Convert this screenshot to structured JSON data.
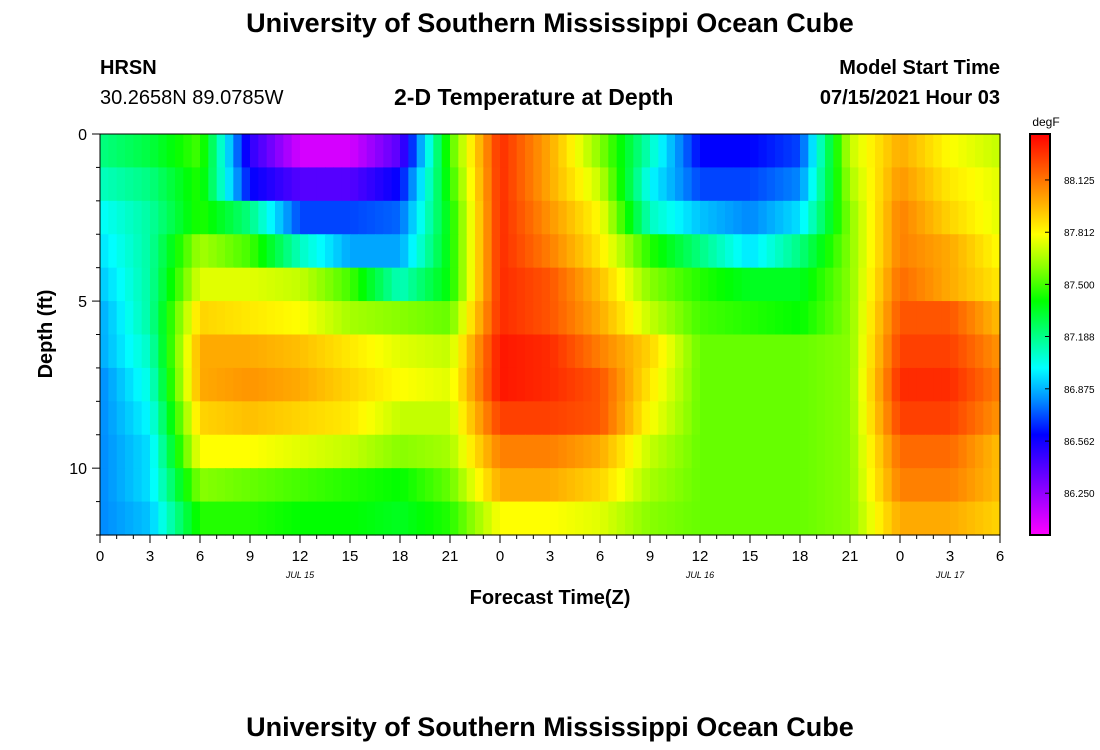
{
  "page": {
    "title_top": "University of Southern Mississippi Ocean Cube",
    "title_bottom": "University of Southern Mississippi Ocean Cube",
    "station_code": "HRSN",
    "station_coords": "30.2658N  89.0785W",
    "plot_title": "2-D Temperature at Depth",
    "model_start_label": "Model Start Time",
    "model_start_value": "07/15/2021 Hour 03"
  },
  "chart_data": {
    "type": "heatmap",
    "title": "2-D Temperature at Depth",
    "xlabel": "Forecast Time(Z)",
    "ylabel": "Depth (ft)",
    "x_ticks": [
      "0",
      "3",
      "6",
      "9",
      "12",
      "15",
      "18",
      "21",
      "0",
      "3",
      "6",
      "9",
      "12",
      "15",
      "18",
      "21",
      "0",
      "3",
      "6"
    ],
    "x_day_labels": [
      {
        "label": "JUL 15",
        "hour": 12
      },
      {
        "label": "JUL 16",
        "hour": 36
      },
      {
        "label": "JUL 17",
        "hour": 51
      }
    ],
    "xlim": [
      0,
      54
    ],
    "y_ticks": [
      "0",
      "5",
      "10"
    ],
    "y_tick_values": [
      0,
      5,
      10
    ],
    "ylim": [
      0,
      12
    ],
    "colorbar": {
      "unit": "degF",
      "ticks": [
        "88.125",
        "87.812",
        "87.500",
        "87.188",
        "86.875",
        "86.562",
        "86.250"
      ],
      "tick_values": [
        88.125,
        87.812,
        87.5,
        87.188,
        86.875,
        86.562,
        86.25
      ],
      "min": 86.0,
      "max": 88.4,
      "colors": [
        "#ff00ff",
        "#aa00ff",
        "#5500ff",
        "#0000ff",
        "#0088ff",
        "#00ffff",
        "#00ff80",
        "#00ff00",
        "#88ff00",
        "#ffff00",
        "#ffaa00",
        "#ff5500",
        "#ff0000"
      ]
    },
    "depths": [
      0,
      1,
      2,
      3,
      4,
      5,
      6,
      7,
      8,
      9,
      10,
      11
    ],
    "hours": [
      0,
      3,
      6,
      9,
      12,
      15,
      18,
      21,
      24,
      27,
      30,
      33,
      36,
      39,
      42,
      45,
      48,
      51,
      54
    ],
    "values": [
      [
        87.2,
        87.3,
        87.5,
        86.5,
        86.1,
        86.1,
        86.4,
        87.5,
        88.3,
        88.0,
        87.6,
        87.1,
        86.6,
        86.6,
        86.7,
        87.7,
        88.0,
        87.8,
        87.7
      ],
      [
        87.1,
        87.2,
        87.45,
        86.6,
        86.4,
        86.4,
        86.6,
        87.45,
        88.3,
        88.0,
        87.7,
        87.0,
        86.7,
        86.7,
        86.8,
        87.65,
        88.05,
        87.85,
        87.75
      ],
      [
        87.0,
        87.15,
        87.45,
        87.2,
        86.7,
        86.7,
        86.75,
        87.4,
        88.3,
        88.05,
        87.8,
        87.1,
        86.9,
        86.8,
        86.95,
        87.6,
        88.1,
        87.9,
        87.75
      ],
      [
        86.95,
        87.15,
        87.65,
        87.5,
        87.1,
        86.85,
        86.85,
        87.4,
        88.3,
        88.1,
        87.85,
        87.45,
        87.2,
        86.95,
        87.2,
        87.6,
        88.1,
        88.0,
        87.8
      ],
      [
        86.9,
        87.15,
        87.75,
        87.75,
        87.7,
        87.5,
        87.1,
        87.4,
        88.3,
        88.2,
        87.95,
        87.6,
        87.45,
        87.35,
        87.35,
        87.6,
        88.15,
        88.0,
        87.85
      ],
      [
        86.85,
        87.15,
        87.9,
        87.85,
        87.8,
        87.65,
        87.6,
        87.55,
        88.3,
        88.2,
        88.0,
        87.7,
        87.5,
        87.45,
        87.4,
        87.6,
        88.2,
        88.2,
        87.95
      ],
      [
        86.85,
        87.1,
        88.0,
        88.0,
        87.95,
        87.85,
        87.75,
        87.7,
        88.35,
        88.3,
        88.1,
        87.9,
        87.55,
        87.55,
        87.55,
        87.6,
        88.25,
        88.25,
        88.05
      ],
      [
        86.8,
        87.05,
        88.0,
        88.05,
        88.0,
        87.9,
        87.8,
        87.75,
        88.35,
        88.3,
        88.2,
        87.85,
        87.55,
        87.55,
        87.55,
        87.6,
        88.3,
        88.3,
        88.1
      ],
      [
        86.8,
        87.0,
        87.9,
        87.95,
        87.9,
        87.85,
        87.7,
        87.7,
        88.25,
        88.25,
        88.2,
        87.8,
        87.55,
        87.55,
        87.55,
        87.6,
        88.25,
        88.25,
        88.05
      ],
      [
        86.8,
        86.95,
        87.8,
        87.8,
        87.75,
        87.7,
        87.6,
        87.65,
        88.1,
        88.1,
        88.0,
        87.7,
        87.55,
        87.55,
        87.55,
        87.6,
        88.15,
        88.15,
        87.95
      ],
      [
        86.8,
        86.95,
        87.6,
        87.55,
        87.5,
        87.45,
        87.4,
        87.55,
        88.0,
        88.0,
        87.9,
        87.65,
        87.55,
        87.55,
        87.55,
        87.6,
        88.1,
        88.1,
        87.95
      ],
      [
        86.8,
        86.9,
        87.45,
        87.45,
        87.4,
        87.4,
        87.35,
        87.45,
        87.8,
        87.8,
        87.75,
        87.6,
        87.55,
        87.55,
        87.55,
        87.6,
        88.0,
        88.0,
        87.9
      ]
    ]
  }
}
